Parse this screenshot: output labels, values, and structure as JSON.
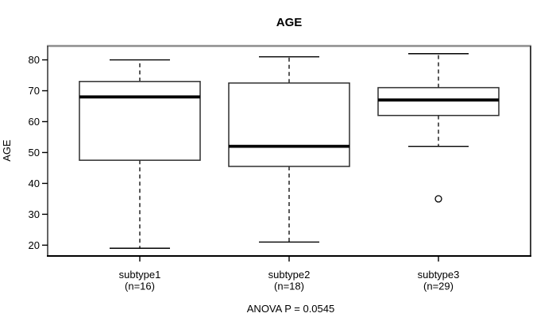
{
  "title": "AGE",
  "colors": {
    "ink": "#000000",
    "box_border": "#2e2e2e",
    "box_fill": "#ffffff",
    "frame_top": "#8d8d8d",
    "frame_side": "#3e3e3e",
    "background": "#ffffff"
  },
  "chart_data": {
    "type": "boxplot",
    "title": "AGE",
    "ylabel": "AGE",
    "xlabel": "",
    "annotation": "ANOVA P = 0.0545",
    "ylim": [
      16.5,
      84.5
    ],
    "yticks": [
      20,
      30,
      40,
      50,
      60,
      70,
      80
    ],
    "grid": false,
    "legend": "none",
    "groups": [
      {
        "label": "subtype1",
        "n_label": "(n=16)",
        "n": 16,
        "min": 19,
        "q1": 47.5,
        "median": 68,
        "q3": 73,
        "max": 80,
        "outliers": []
      },
      {
        "label": "subtype2",
        "n_label": "(n=18)",
        "n": 18,
        "min": 21,
        "q1": 45.5,
        "median": 52,
        "q3": 72.5,
        "max": 81,
        "outliers": []
      },
      {
        "label": "subtype3",
        "n_label": "(n=29)",
        "n": 29,
        "min": 52,
        "q1": 62,
        "median": 67,
        "q3": 71,
        "max": 82,
        "outliers": [
          35
        ]
      }
    ]
  }
}
